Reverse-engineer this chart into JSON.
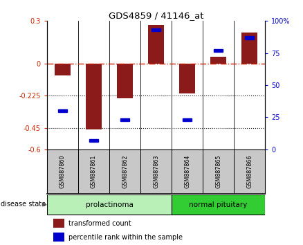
{
  "title": "GDS4859 / 41146_at",
  "samples": [
    "GSM887860",
    "GSM887861",
    "GSM887862",
    "GSM887863",
    "GSM887864",
    "GSM887865",
    "GSM887866"
  ],
  "red_bars": [
    -0.08,
    -0.46,
    -0.24,
    0.27,
    -0.21,
    0.05,
    0.22
  ],
  "blue_pct": [
    30,
    7,
    23,
    93,
    23,
    77,
    87
  ],
  "ylim_left": [
    -0.6,
    0.3
  ],
  "yticks_left": [
    0.3,
    0.0,
    -0.225,
    -0.45,
    -0.6
  ],
  "ytick_labels_left": [
    "0.3",
    "0",
    "-0.225",
    "-0.45",
    "-0.6"
  ],
  "ylim_right": [
    0,
    100
  ],
  "yticks_right": [
    100,
    75,
    50,
    25,
    0
  ],
  "ytick_labels_right": [
    "100%",
    "75",
    "50",
    "25",
    "0"
  ],
  "hline_y": 0.0,
  "dotted_lines": [
    -0.225,
    -0.45
  ],
  "bar_color": "#8B1A1A",
  "dot_color": "#0000CD",
  "disease_state_label": "disease state",
  "group1_label": "prolactinoma",
  "group1_color": "#b8f0b8",
  "group2_label": "normal pituitary",
  "group2_color": "#32CD32",
  "legend_red": "transformed count",
  "legend_blue": "percentile rank within the sample",
  "bar_width": 0.5
}
